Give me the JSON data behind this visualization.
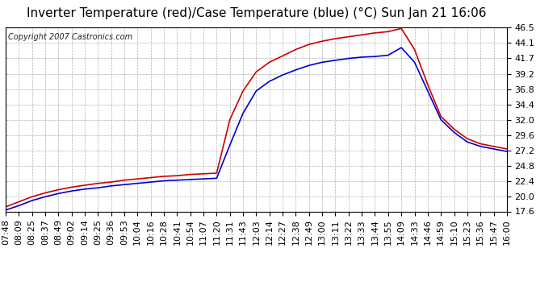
{
  "title": "Inverter Temperature (red)/Case Temperature (blue) (°C) Sun Jan 21 16:06",
  "copyright": "Copyright 2007 Castronics.com",
  "y_ticks": [
    17.6,
    20.0,
    22.4,
    24.8,
    27.2,
    29.6,
    32.0,
    34.4,
    36.8,
    39.2,
    41.7,
    44.1,
    46.5
  ],
  "ylim": [
    17.6,
    46.5
  ],
  "x_labels": [
    "07:48",
    "08:09",
    "08:25",
    "08:37",
    "08:49",
    "09:02",
    "09:14",
    "09:25",
    "09:36",
    "09:53",
    "10:04",
    "10:16",
    "10:28",
    "10:41",
    "10:54",
    "11:07",
    "11:20",
    "11:31",
    "11:43",
    "12:03",
    "12:14",
    "12:27",
    "12:38",
    "12:49",
    "13:00",
    "13:11",
    "13:22",
    "13:33",
    "13:44",
    "13:55",
    "14:09",
    "14:33",
    "14:46",
    "14:59",
    "15:10",
    "15:23",
    "15:36",
    "15:47",
    "16:00"
  ],
  "red_data": [
    18.3,
    19.1,
    19.9,
    20.5,
    21.0,
    21.4,
    21.7,
    22.0,
    22.2,
    22.5,
    22.7,
    22.9,
    23.1,
    23.2,
    23.4,
    23.5,
    23.6,
    32.0,
    36.5,
    39.5,
    41.0,
    42.0,
    43.0,
    43.8,
    44.3,
    44.7,
    45.0,
    45.3,
    45.6,
    45.8,
    46.3,
    43.0,
    37.5,
    32.5,
    30.5,
    29.0,
    28.2,
    27.8,
    27.4
  ],
  "blue_data": [
    17.8,
    18.5,
    19.3,
    19.9,
    20.4,
    20.8,
    21.1,
    21.3,
    21.6,
    21.8,
    22.0,
    22.2,
    22.4,
    22.5,
    22.6,
    22.7,
    22.8,
    28.0,
    33.0,
    36.5,
    38.0,
    39.0,
    39.8,
    40.5,
    41.0,
    41.3,
    41.6,
    41.8,
    41.9,
    42.1,
    43.3,
    41.0,
    36.5,
    32.0,
    30.0,
    28.5,
    27.8,
    27.4,
    27.0
  ],
  "line_color_red": "#cc0000",
  "line_color_blue": "#0000cc",
  "bg_color": "#ffffff",
  "plot_bg_color": "#ffffff",
  "grid_color": "#b0b0b0",
  "title_fontsize": 11,
  "copyright_fontsize": 7,
  "tick_fontsize": 8,
  "line_width": 1.2
}
